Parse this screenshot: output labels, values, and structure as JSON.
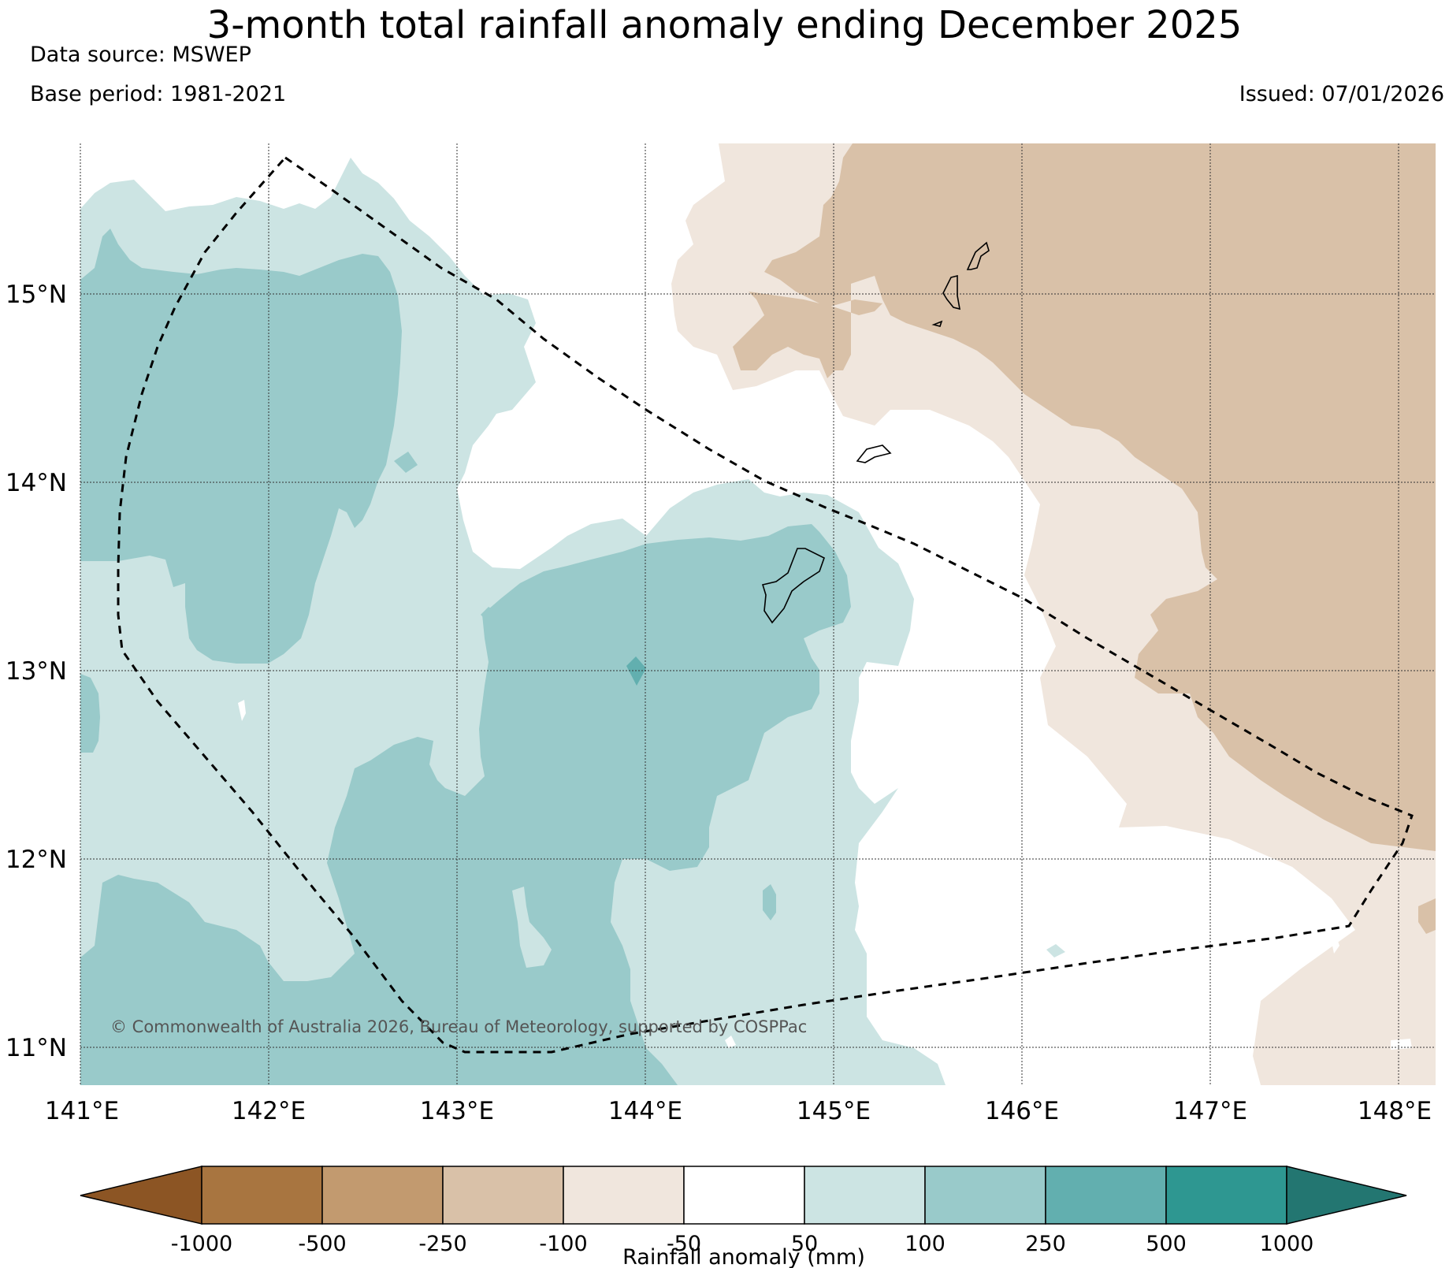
{
  "title": "3-month total rainfall anomaly ending December 2025",
  "data_source": "Data source: MSWEP",
  "base_period": "Base period: 1981-2021",
  "issued": "Issued: 07/01/2026",
  "copyright": "© Commonwealth of Australia 2026, Bureau of Meteorology, supported by COSPPac",
  "map": {
    "lon_labels": [
      "141°E",
      "142°E",
      "143°E",
      "144°E",
      "145°E",
      "146°E",
      "147°E",
      "148°E"
    ],
    "lat_labels": [
      "15°N",
      "14°N",
      "13°N",
      "12°N",
      "11°N"
    ]
  },
  "colorbar": {
    "label": "Rainfall anomaly (mm)",
    "ticks": [
      "-1000",
      "-500",
      "-250",
      "-100",
      "-50",
      "50",
      "100",
      "250",
      "500",
      "1000"
    ],
    "colors": [
      "#8c5524",
      "#a87540",
      "#c29a6f",
      "#d9c1a8",
      "#f0e6dd",
      "#ffffff",
      "#cce4e3",
      "#99caca",
      "#62afaf",
      "#2e9791",
      "#237671"
    ]
  },
  "fills": {
    "dry_light": "#f0e6dd",
    "dry_med": "#d9c1a8",
    "wet_light": "#cce4e3",
    "wet_med": "#99caca",
    "wet_strong": "#62afaf"
  }
}
